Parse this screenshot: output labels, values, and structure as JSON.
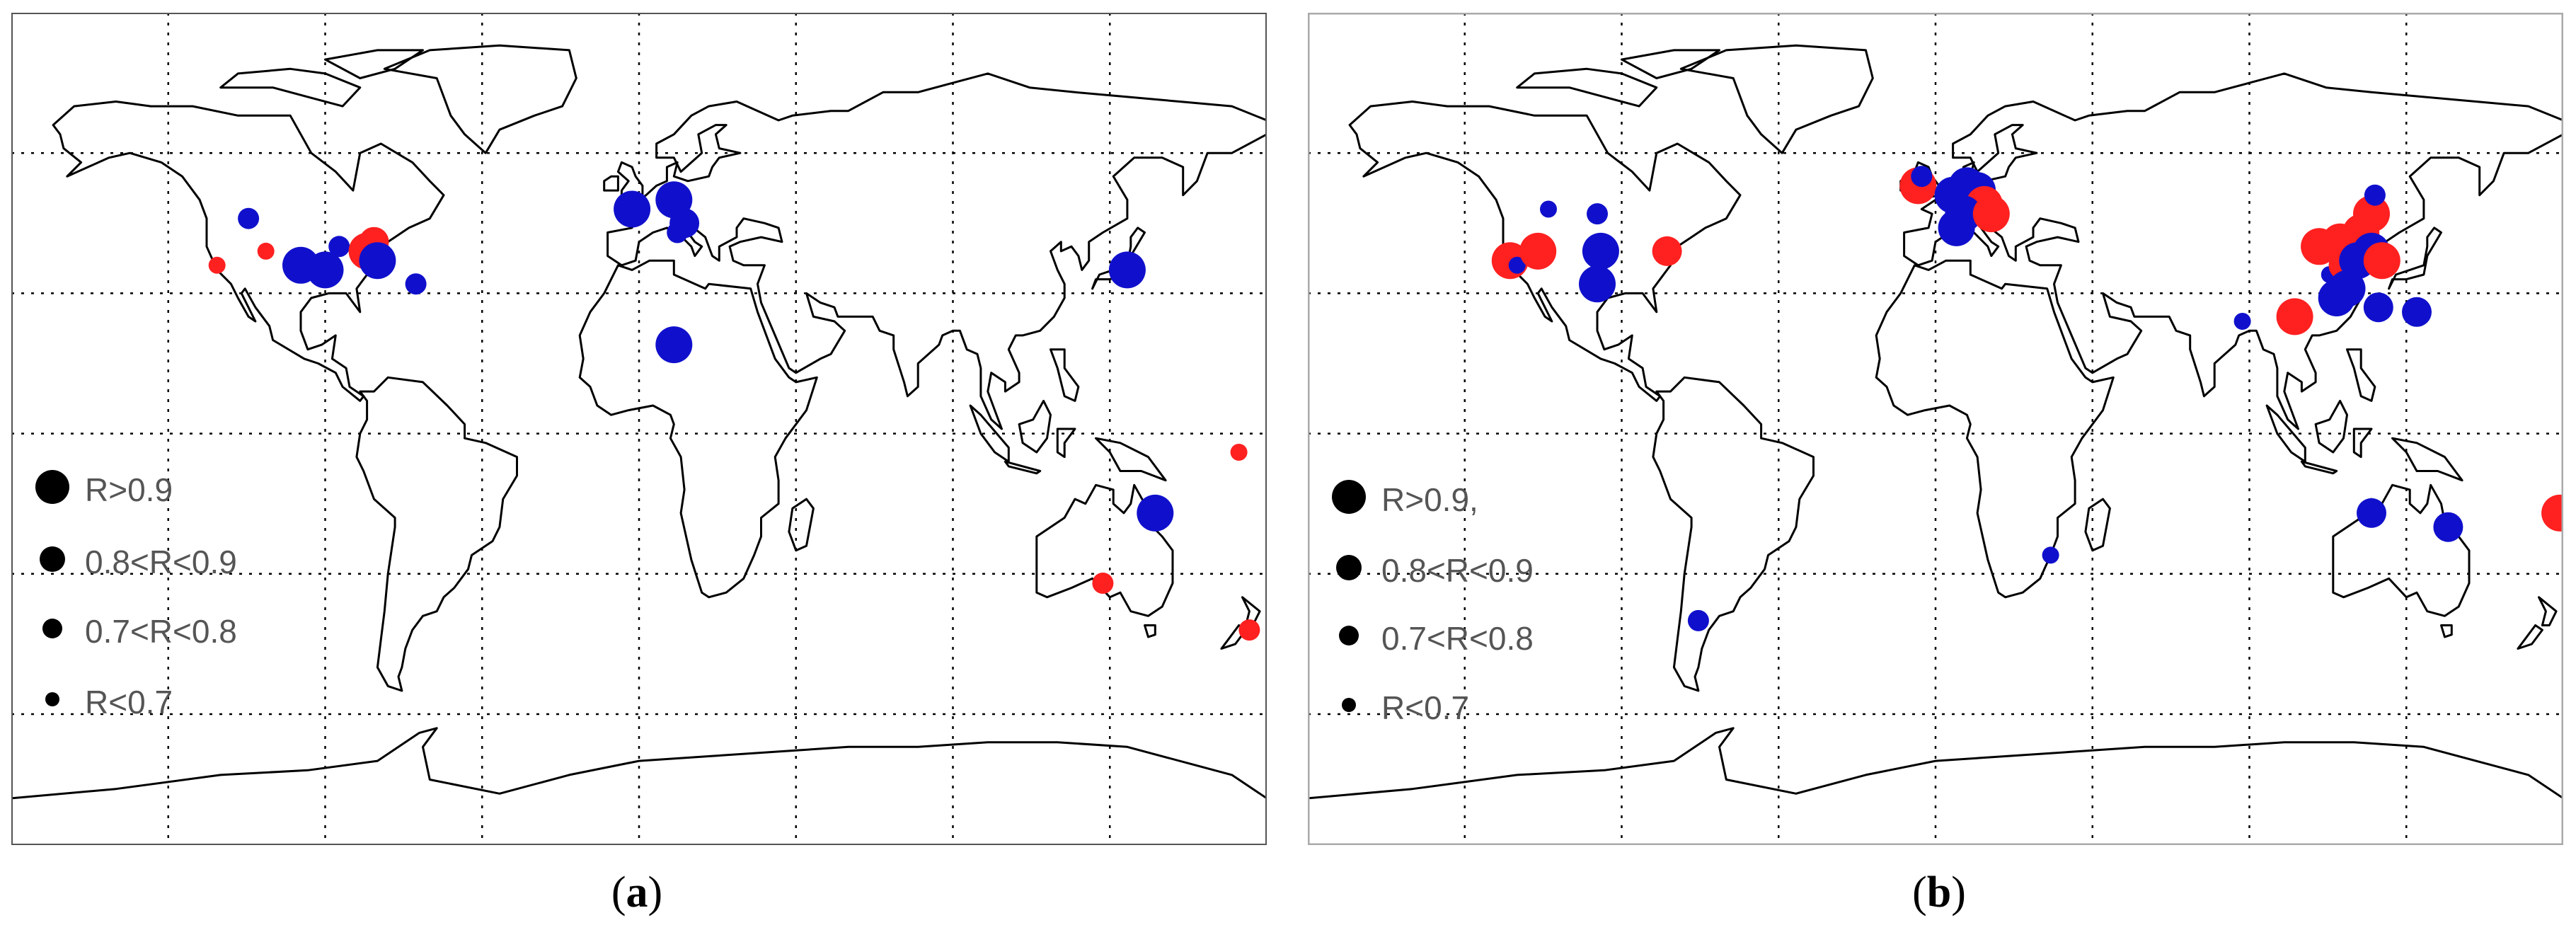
{
  "colors": {
    "red": "#ff2020",
    "blue": "#1010cc",
    "land": "#000000",
    "grid": "#000000"
  },
  "panels": [
    {
      "id": "a",
      "caption_letter": "a",
      "legend": [
        "R>0.9",
        "0.8<R<0.9",
        "0.7<R<0.8",
        "R<0.7"
      ],
      "sites": [
        {
          "lon": -112,
          "lat": 46,
          "color": "blue",
          "cls": 3
        },
        {
          "lon": -121,
          "lat": 36,
          "color": "red",
          "cls": 4
        },
        {
          "lon": -107,
          "lat": 39,
          "color": "red",
          "cls": 4
        },
        {
          "lon": -97,
          "lat": 36,
          "color": "blue",
          "cls": 1
        },
        {
          "lon": -90,
          "lat": 35,
          "color": "blue",
          "cls": 1
        },
        {
          "lon": -86,
          "lat": 40,
          "color": "blue",
          "cls": 3
        },
        {
          "lon": -76,
          "lat": 41,
          "color": "red",
          "cls": 2
        },
        {
          "lon": -78,
          "lat": 39,
          "color": "red",
          "cls": 1
        },
        {
          "lon": -75,
          "lat": 37,
          "color": "blue",
          "cls": 1
        },
        {
          "lon": -64,
          "lat": 32,
          "color": "blue",
          "cls": 3
        },
        {
          "lon": -2,
          "lat": 48,
          "color": "blue",
          "cls": 1
        },
        {
          "lon": 10,
          "lat": 50,
          "color": "blue",
          "cls": 1
        },
        {
          "lon": 13,
          "lat": 45,
          "color": "blue",
          "cls": 2
        },
        {
          "lon": 11,
          "lat": 43,
          "color": "blue",
          "cls": 3
        },
        {
          "lon": 10,
          "lat": 19,
          "color": "blue",
          "cls": 1
        },
        {
          "lon": 140,
          "lat": 35,
          "color": "blue",
          "cls": 1
        },
        {
          "lon": 172,
          "lat": -4,
          "color": "red",
          "cls": 4
        },
        {
          "lon": 148,
          "lat": -17,
          "color": "blue",
          "cls": 1
        },
        {
          "lon": 133,
          "lat": -32,
          "color": "red",
          "cls": 3
        },
        {
          "lon": 175,
          "lat": -42,
          "color": "red",
          "cls": 3
        }
      ]
    },
    {
      "id": "b",
      "caption_letter": "b",
      "legend": [
        "R>0.9,",
        "0.8<R<0.9",
        "0.7<R<0.8",
        "R<0.7"
      ],
      "sites": [
        {
          "lon": -122,
          "lat": 37,
          "color": "red",
          "cls": 1
        },
        {
          "lon": -120,
          "lat": 36,
          "color": "blue",
          "cls": 4
        },
        {
          "lon": -114,
          "lat": 39,
          "color": "red",
          "cls": 1
        },
        {
          "lon": -111,
          "lat": 48,
          "color": "blue",
          "cls": 4
        },
        {
          "lon": -97,
          "lat": 47,
          "color": "blue",
          "cls": 3
        },
        {
          "lon": -96,
          "lat": 39,
          "color": "blue",
          "cls": 1
        },
        {
          "lon": -97,
          "lat": 32,
          "color": "blue",
          "cls": 1
        },
        {
          "lon": -77,
          "lat": 39,
          "color": "red",
          "cls": 2
        },
        {
          "lon": -68,
          "lat": -40,
          "color": "blue",
          "cls": 3
        },
        {
          "lon": -5,
          "lat": 53,
          "color": "red",
          "cls": 1
        },
        {
          "lon": -4,
          "lat": 55,
          "color": "blue",
          "cls": 3
        },
        {
          "lon": 5,
          "lat": 51,
          "color": "blue",
          "cls": 1
        },
        {
          "lon": 9,
          "lat": 53,
          "color": "blue",
          "cls": 1
        },
        {
          "lon": 12,
          "lat": 52,
          "color": "blue",
          "cls": 1
        },
        {
          "lon": 14,
          "lat": 49,
          "color": "red",
          "cls": 1
        },
        {
          "lon": 8,
          "lat": 47,
          "color": "blue",
          "cls": 1
        },
        {
          "lon": 6,
          "lat": 44,
          "color": "blue",
          "cls": 1
        },
        {
          "lon": 16,
          "lat": 47,
          "color": "red",
          "cls": 1
        },
        {
          "lon": 33,
          "lat": -26,
          "color": "blue",
          "cls": 4
        },
        {
          "lon": 88,
          "lat": 24,
          "color": "blue",
          "cls": 4
        },
        {
          "lon": 103,
          "lat": 25,
          "color": "red",
          "cls": 1
        },
        {
          "lon": 110,
          "lat": 40,
          "color": "red",
          "cls": 1
        },
        {
          "lon": 116,
          "lat": 41,
          "color": "red",
          "cls": 1
        },
        {
          "lon": 122,
          "lat": 43,
          "color": "red",
          "cls": 1
        },
        {
          "lon": 125,
          "lat": 47,
          "color": "red",
          "cls": 1
        },
        {
          "lon": 126,
          "lat": 51,
          "color": "blue",
          "cls": 3
        },
        {
          "lon": 113,
          "lat": 34,
          "color": "blue",
          "cls": 4
        },
        {
          "lon": 117,
          "lat": 36,
          "color": "red",
          "cls": 2
        },
        {
          "lon": 121,
          "lat": 37,
          "color": "blue",
          "cls": 1
        },
        {
          "lon": 125,
          "lat": 39,
          "color": "blue",
          "cls": 1
        },
        {
          "lon": 128,
          "lat": 37,
          "color": "red",
          "cls": 1
        },
        {
          "lon": 118,
          "lat": 31,
          "color": "blue",
          "cls": 1
        },
        {
          "lon": 115,
          "lat": 29,
          "color": "blue",
          "cls": 1
        },
        {
          "lon": 127,
          "lat": 27,
          "color": "blue",
          "cls": 2
        },
        {
          "lon": 138,
          "lat": 26,
          "color": "blue",
          "cls": 2
        },
        {
          "lon": 125,
          "lat": -17,
          "color": "blue",
          "cls": 2
        },
        {
          "lon": 147,
          "lat": -20,
          "color": "blue",
          "cls": 2
        },
        {
          "lon": 179,
          "lat": -17,
          "color": "red",
          "cls": 1
        }
      ]
    }
  ]
}
